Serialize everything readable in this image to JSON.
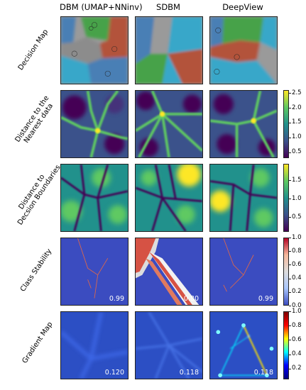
{
  "columns": [
    "DBM (UMAP+NNinv)",
    "SDBM",
    "DeepView"
  ],
  "rows": [
    {
      "label_lines": [
        "Decision Map"
      ],
      "colorbar": null
    },
    {
      "label_lines": [
        "Distance to the",
        "Nearest data"
      ],
      "colorbar": "viridis",
      "ticks": [
        "2.5",
        "2.0",
        "1.5",
        "1.0",
        "0.5"
      ],
      "tick_values": [
        2.5,
        2.0,
        1.5,
        1.0,
        0.5
      ],
      "range": [
        0.3,
        2.6
      ]
    },
    {
      "label_lines": [
        "Distance to",
        "Decsion Boundaries"
      ],
      "colorbar": "viridis",
      "ticks": [
        "1.5",
        "1.0",
        "0.5"
      ],
      "tick_values": [
        1.5,
        1.0,
        0.5
      ],
      "range": [
        0.1,
        1.95
      ]
    },
    {
      "label_lines": [
        "Class Stability"
      ],
      "colorbar": "coolwarm",
      "ticks": [
        "1.0",
        "0.8",
        "0.6",
        "0.4",
        "0.2",
        "0.0"
      ],
      "tick_values": [
        1.0,
        0.8,
        0.6,
        0.4,
        0.2,
        0.0
      ],
      "range": [
        0.0,
        1.0
      ],
      "scores": [
        "0.99",
        "0.80",
        "0.99"
      ]
    },
    {
      "label_lines": [
        "Gradient Map"
      ],
      "colorbar": "jet",
      "ticks": [
        "1.0",
        "0.8",
        "0.6",
        "0.4",
        "0.2"
      ],
      "tick_values": [
        1.0,
        0.8,
        0.6,
        0.4,
        0.2
      ],
      "range": [
        0.05,
        1.0
      ],
      "scores": [
        "0.120",
        "0.118",
        "0.118"
      ]
    }
  ],
  "colors": {
    "viridis": [
      "#440154",
      "#3b528b",
      "#21918c",
      "#5ec962",
      "#fde725"
    ],
    "coolwarm": [
      "#3b4cc0",
      "#aac7fd",
      "#dddddd",
      "#f7b89c",
      "#b40426"
    ],
    "jet": [
      "#00007f",
      "#0000ff",
      "#00ffff",
      "#ffff00",
      "#ff0000",
      "#7f0000"
    ],
    "classes": [
      "#4a7fb5",
      "#46a249",
      "#b3523b",
      "#9a9a9a",
      "#37a7c9"
    ]
  }
}
